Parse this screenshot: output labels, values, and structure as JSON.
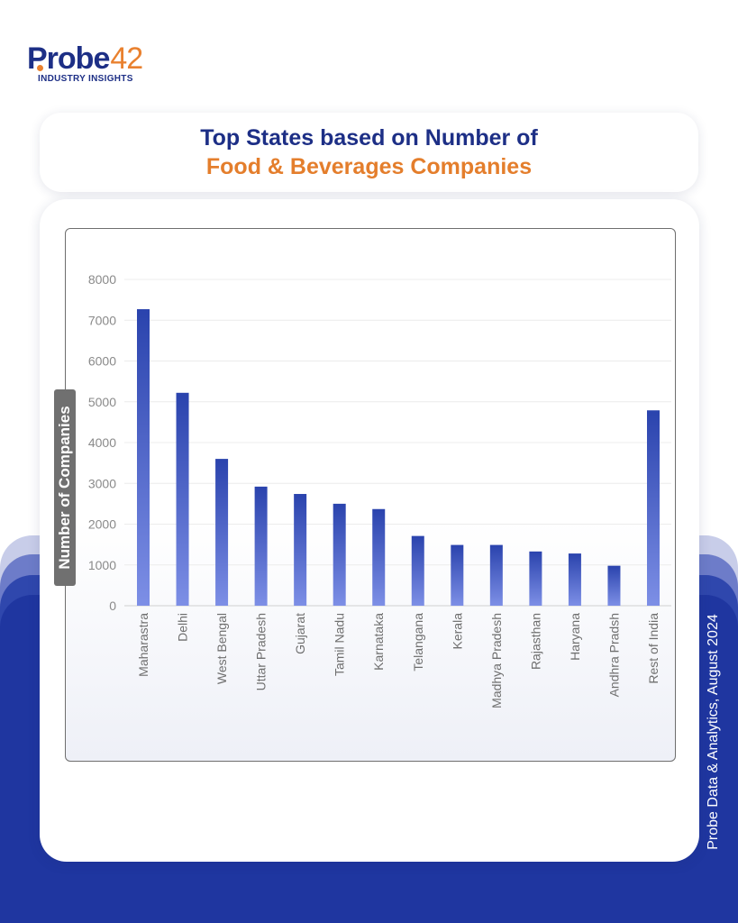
{
  "brand": {
    "logo_text": "Probe",
    "logo_number": "42",
    "tagline": "INDUSTRY INSIGHTS"
  },
  "title": {
    "line1": "Top States based on Number of",
    "line2": "Food & Beverages Companies"
  },
  "source_note": "Probe Data & Analytics, August 2024",
  "colors": {
    "brand_navy": "#1d2f86",
    "brand_orange": "#e47e2c",
    "bar_top": "#2a43ad",
    "bar_bottom": "#7d8fe6",
    "background_blue": "#1f36a0"
  },
  "chart_data": {
    "type": "bar",
    "title": "Top States based on Number of Food & Beverages Companies",
    "xlabel": "",
    "ylabel": "Number of Companies",
    "ylim": [
      0,
      8000
    ],
    "yticks": [
      0,
      1000,
      2000,
      3000,
      4000,
      5000,
      6000,
      7000,
      8000
    ],
    "grid": true,
    "categories": [
      "Maharastra",
      "Delhi",
      "West Bengal",
      "Uttar Pradesh",
      "Gujarat",
      "Tamil Nadu",
      "Karnataka",
      "Telangana",
      "Kerala",
      "Madhya Pradesh",
      "Rajasthan",
      "Haryana",
      "Andhra Pradsh",
      "Rest of India"
    ],
    "values": [
      7270,
      5220,
      3600,
      2920,
      2740,
      2500,
      2370,
      1710,
      1490,
      1490,
      1330,
      1280,
      980,
      4790
    ]
  }
}
